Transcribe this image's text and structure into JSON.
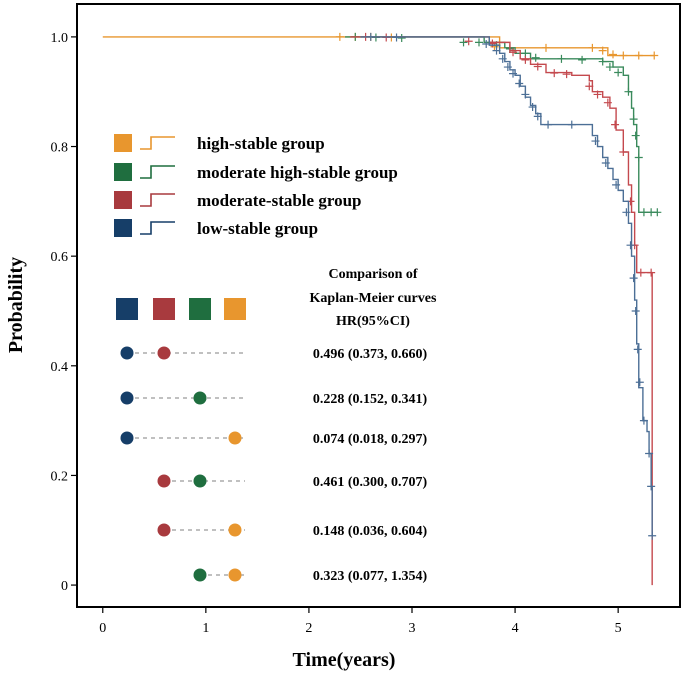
{
  "chart_data": {
    "type": "line",
    "subtype": "kaplan-meier",
    "xlabel": "Time(years)",
    "ylabel": "Probability",
    "xlim": [
      -0.25,
      5.6
    ],
    "ylim": [
      -0.04,
      1.06
    ],
    "x_ticks": [
      "0",
      "1",
      "2",
      "3",
      "4",
      "5"
    ],
    "y_ticks": [
      "0",
      "0.2",
      "0.4",
      "0.6",
      "0.8",
      "1.0"
    ],
    "legend": {
      "position": "upper-left",
      "entries": [
        {
          "key": "high",
          "label": "high-stable group",
          "color": "#E8962E"
        },
        {
          "key": "modhigh",
          "label": "moderate high-stable group",
          "color": "#1F6E3F"
        },
        {
          "key": "mod",
          "label": "moderate-stable group",
          "color": "#A83A3E"
        },
        {
          "key": "low",
          "label": "low-stable group",
          "color": "#163E68"
        }
      ]
    },
    "series": [
      {
        "name": "high-stable group",
        "color": "#E8962E",
        "line_color": "#E8962E",
        "steps": [
          [
            0,
            1.0
          ],
          [
            3.85,
            0.98
          ],
          [
            4.9,
            0.966
          ],
          [
            5.35,
            0.966
          ]
        ],
        "censor": [
          [
            2.3,
            1.0
          ],
          [
            2.45,
            1.0
          ],
          [
            2.6,
            1.0
          ],
          [
            2.8,
            0.999
          ],
          [
            3.8,
            0.982
          ],
          [
            3.95,
            0.98
          ],
          [
            4.3,
            0.98
          ],
          [
            4.75,
            0.98
          ],
          [
            4.85,
            0.975
          ],
          [
            4.95,
            0.968
          ],
          [
            5.05,
            0.966
          ],
          [
            5.2,
            0.966
          ],
          [
            5.35,
            0.966
          ]
        ]
      },
      {
        "name": "moderate high-stable group",
        "color": "#1F6E3F",
        "line_color": "#3A8A5C",
        "steps": [
          [
            2.35,
            1.0
          ],
          [
            3.7,
            0.99
          ],
          [
            3.9,
            0.98
          ],
          [
            4.0,
            0.97
          ],
          [
            4.15,
            0.96
          ],
          [
            4.85,
            0.955
          ],
          [
            4.95,
            0.945
          ],
          [
            5.05,
            0.93
          ],
          [
            5.1,
            0.9
          ],
          [
            5.13,
            0.87
          ],
          [
            5.15,
            0.84
          ],
          [
            5.18,
            0.8
          ],
          [
            5.2,
            0.68
          ],
          [
            5.38,
            0.68
          ]
        ],
        "censor": [
          [
            2.45,
            1.0
          ],
          [
            2.65,
            0.999
          ],
          [
            2.9,
            0.998
          ],
          [
            3.5,
            0.99
          ],
          [
            3.65,
            0.99
          ],
          [
            3.82,
            0.985
          ],
          [
            3.95,
            0.978
          ],
          [
            4.1,
            0.97
          ],
          [
            4.2,
            0.962
          ],
          [
            4.45,
            0.96
          ],
          [
            4.65,
            0.958
          ],
          [
            4.85,
            0.955
          ],
          [
            4.92,
            0.945
          ],
          [
            5.0,
            0.935
          ],
          [
            5.1,
            0.9
          ],
          [
            5.15,
            0.85
          ],
          [
            5.17,
            0.82
          ],
          [
            5.2,
            0.78
          ],
          [
            5.25,
            0.68
          ],
          [
            5.32,
            0.68
          ],
          [
            5.38,
            0.68
          ]
        ]
      },
      {
        "name": "moderate-stable group",
        "color": "#A83A3E",
        "line_color": "#C4494E",
        "steps": [
          [
            2.4,
            1.0
          ],
          [
            3.75,
            0.99
          ],
          [
            3.95,
            0.975
          ],
          [
            4.05,
            0.96
          ],
          [
            4.15,
            0.95
          ],
          [
            4.3,
            0.935
          ],
          [
            4.55,
            0.93
          ],
          [
            4.72,
            0.92
          ],
          [
            4.75,
            0.9
          ],
          [
            4.85,
            0.89
          ],
          [
            4.92,
            0.87
          ],
          [
            4.98,
            0.83
          ],
          [
            5.05,
            0.79
          ],
          [
            5.1,
            0.73
          ],
          [
            5.13,
            0.68
          ],
          [
            5.16,
            0.62
          ],
          [
            5.18,
            0.57
          ],
          [
            5.32,
            0.57
          ],
          [
            5.33,
            0.0
          ]
        ],
        "censor": [
          [
            2.55,
            1.0
          ],
          [
            2.75,
            0.999
          ],
          [
            3.55,
            0.992
          ],
          [
            3.78,
            0.988
          ],
          [
            3.98,
            0.972
          ],
          [
            4.1,
            0.958
          ],
          [
            4.22,
            0.946
          ],
          [
            4.38,
            0.934
          ],
          [
            4.5,
            0.932
          ],
          [
            4.72,
            0.91
          ],
          [
            4.8,
            0.895
          ],
          [
            4.9,
            0.88
          ],
          [
            4.97,
            0.84
          ],
          [
            5.05,
            0.79
          ],
          [
            5.12,
            0.7
          ],
          [
            5.16,
            0.62
          ],
          [
            5.22,
            0.57
          ],
          [
            5.32,
            0.57
          ]
        ]
      },
      {
        "name": "low-stable group",
        "color": "#163E68",
        "line_color": "#4C6F96",
        "steps": [
          [
            2.5,
            1.0
          ],
          [
            3.75,
            0.985
          ],
          [
            3.85,
            0.97
          ],
          [
            3.9,
            0.955
          ],
          [
            3.95,
            0.94
          ],
          [
            4.0,
            0.93
          ],
          [
            4.05,
            0.91
          ],
          [
            4.1,
            0.89
          ],
          [
            4.15,
            0.875
          ],
          [
            4.2,
            0.86
          ],
          [
            4.25,
            0.84
          ],
          [
            4.7,
            0.84
          ],
          [
            4.75,
            0.82
          ],
          [
            4.8,
            0.8
          ],
          [
            4.85,
            0.78
          ],
          [
            4.9,
            0.76
          ],
          [
            4.95,
            0.74
          ],
          [
            5.0,
            0.72
          ],
          [
            5.05,
            0.7
          ],
          [
            5.1,
            0.66
          ],
          [
            5.13,
            0.6
          ],
          [
            5.16,
            0.52
          ],
          [
            5.18,
            0.44
          ],
          [
            5.2,
            0.36
          ],
          [
            5.24,
            0.3
          ],
          [
            5.28,
            0.28
          ],
          [
            5.3,
            0.24
          ],
          [
            5.32,
            0.18
          ],
          [
            5.33,
            0.09
          ]
        ],
        "censor": [
          [
            2.6,
            1.0
          ],
          [
            2.85,
            0.999
          ],
          [
            3.72,
            0.987
          ],
          [
            3.82,
            0.975
          ],
          [
            3.88,
            0.96
          ],
          [
            3.93,
            0.945
          ],
          [
            3.98,
            0.933
          ],
          [
            4.04,
            0.915
          ],
          [
            4.1,
            0.895
          ],
          [
            4.17,
            0.872
          ],
          [
            4.22,
            0.855
          ],
          [
            4.32,
            0.84
          ],
          [
            4.55,
            0.84
          ],
          [
            4.78,
            0.81
          ],
          [
            4.88,
            0.77
          ],
          [
            4.98,
            0.73
          ],
          [
            5.08,
            0.68
          ],
          [
            5.12,
            0.62
          ],
          [
            5.15,
            0.56
          ],
          [
            5.17,
            0.5
          ],
          [
            5.19,
            0.43
          ],
          [
            5.21,
            0.37
          ],
          [
            5.25,
            0.3
          ],
          [
            5.3,
            0.24
          ],
          [
            5.32,
            0.18
          ],
          [
            5.33,
            0.09
          ]
        ]
      }
    ],
    "comparison": {
      "title_lines": [
        "Comparison of",
        "Kaplan-Meier curves",
        "HR(95%CI)"
      ],
      "header_groups": [
        "low",
        "mod",
        "modhigh",
        "high"
      ],
      "rows": [
        {
          "pair": [
            "low",
            "mod"
          ],
          "label": "0.496 (0.373, 0.660)"
        },
        {
          "pair": [
            "low",
            "modhigh"
          ],
          "label": "0.228 (0.152, 0.341)"
        },
        {
          "pair": [
            "low",
            "high"
          ],
          "label": "0.074 (0.018, 0.297)"
        },
        {
          "pair": [
            "mod",
            "modhigh"
          ],
          "label": "0.461 (0.300, 0.707)"
        },
        {
          "pair": [
            "mod",
            "high"
          ],
          "label": "0.148 (0.036, 0.604)"
        },
        {
          "pair": [
            "modhigh",
            "high"
          ],
          "label": "0.323 (0.077, 1.354)"
        }
      ]
    }
  }
}
